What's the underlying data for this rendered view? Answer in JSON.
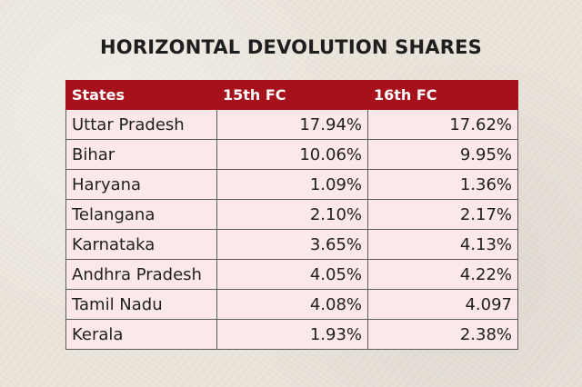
{
  "title": "HORIZONTAL DEVOLUTION SHARES",
  "table": {
    "headers": [
      "States",
      "15th FC",
      "16th FC"
    ],
    "rows": [
      [
        "Uttar Pradesh",
        "17.94%",
        "17.62%"
      ],
      [
        "Bihar",
        "10.06%",
        "9.95%"
      ],
      [
        "Haryana",
        "1.09%",
        "1.36%"
      ],
      [
        "Telangana",
        "2.10%",
        "2.17%"
      ],
      [
        "Karnataka",
        "3.65%",
        "4.13%"
      ],
      [
        "Andhra Pradesh",
        "4.05%",
        "4.22%"
      ],
      [
        "Tamil Nadu",
        "4.08%",
        "4.097"
      ],
      [
        "Kerala",
        "1.93%",
        "2.38%"
      ]
    ]
  },
  "colors": {
    "header_background": "#a6111c",
    "header_text": "#ffffff",
    "cell_background": "#fde8e9",
    "page_background": "#ece6dc"
  }
}
